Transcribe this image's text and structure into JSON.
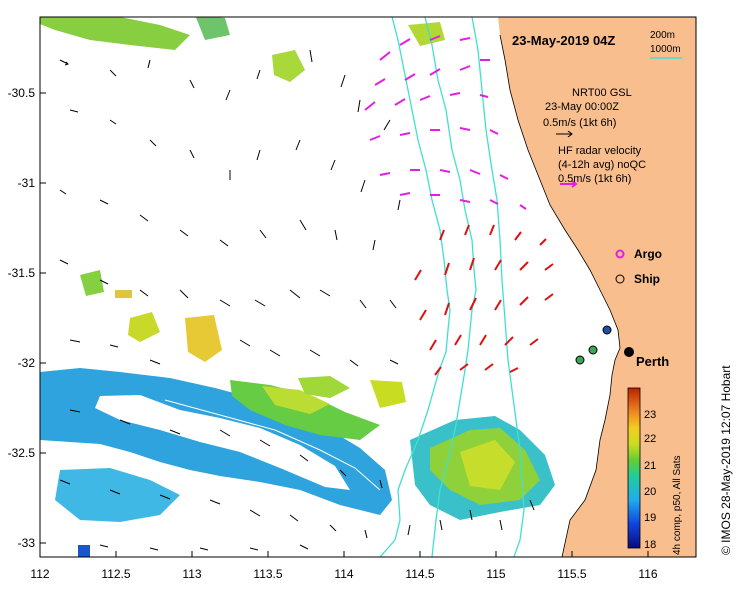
{
  "header": {
    "date": "23-May-2019 04Z"
  },
  "scale": {
    "isobath_primary": "200m",
    "isobath_secondary": "1000m",
    "isobath_color": "#40e0d0"
  },
  "legend": {
    "model_name": "NRT00 GSL",
    "model_time": "23-May 00:00Z",
    "model_speed": "0.5m/s (1kt 6h)",
    "radar_line1": "HF radar velocity",
    "radar_line2": "(4-12h avg) noQC",
    "radar_speed": "0.5m/s (1kt 6h)",
    "argo_label": "Argo",
    "ship_label": "Ship"
  },
  "places": {
    "city": "Perth"
  },
  "axes": {
    "x_ticks": [
      "112",
      "112.5",
      "113",
      "113.5",
      "114",
      "114.5",
      "115",
      "115.5",
      "116"
    ],
    "y_ticks": [
      "-30.5",
      "-31",
      "-31.5",
      "-32",
      "-32.5",
      "-33"
    ]
  },
  "colorbar": {
    "label": "4h comp, p50, All Sats",
    "ticks": [
      "23",
      "22",
      "21",
      "20",
      "19",
      "18"
    ]
  },
  "credit": "© IMOS 28-May-2019 12:07 Hobart",
  "colors": {
    "land": "#f9be8e",
    "model_arrow": "#000000",
    "radar_arrow_north": "#e020e0",
    "radar_arrow_south": "#dd1111"
  }
}
